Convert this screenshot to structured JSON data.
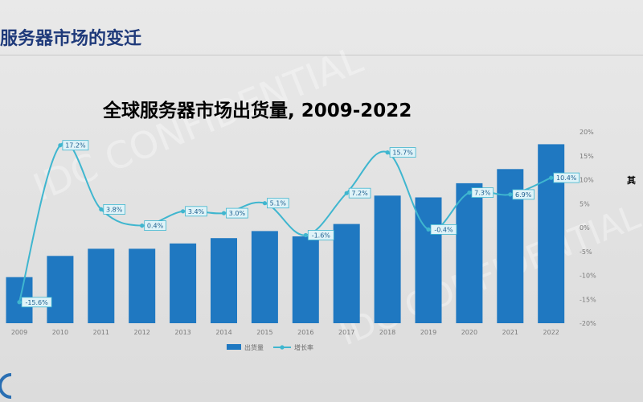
{
  "slide": {
    "title": "服务器市场的变迁",
    "side_note": "其",
    "accent_color": "#1f3a7a"
  },
  "chart_data": {
    "type": "bar",
    "title": "全球服务器市场出货量, 2009-2022",
    "categories": [
      "2009",
      "2010",
      "2011",
      "2012",
      "2013",
      "2014",
      "2015",
      "2016",
      "2017",
      "2018",
      "2019",
      "2020",
      "2021",
      "2022"
    ],
    "series": [
      {
        "name": "出货量",
        "type": "bar",
        "color": "#1f78c1",
        "values": [
          6.6,
          7.8,
          8.2,
          8.2,
          8.5,
          8.8,
          9.2,
          8.9,
          9.6,
          11.2,
          11.1,
          11.9,
          12.7,
          14.1
        ]
      },
      {
        "name": "增长率",
        "type": "line",
        "axis": "right",
        "color": "#3fb6cf",
        "values": [
          -15.6,
          17.2,
          3.8,
          0.4,
          3.4,
          3.0,
          5.1,
          -1.6,
          7.2,
          15.7,
          -0.4,
          7.3,
          6.9,
          10.4
        ],
        "labels": [
          "-15.6%",
          "17.2%",
          "3.8%",
          "0.4%",
          "3.4%",
          "3.0%",
          "5.1%",
          "-1.6%",
          "7.2%",
          "15.7%",
          "-0.4%",
          "7.3%",
          "6.9%",
          "10.4%"
        ]
      }
    ],
    "y_left_range": [
      4,
      14.8
    ],
    "y_right_range": [
      -20,
      20
    ],
    "y_right_ticks": [
      "20%",
      "15%",
      "10%",
      "5%",
      "0%",
      "-5%",
      "-10%",
      "-15%",
      "-20%"
    ],
    "legend_position": "bottom-center",
    "grid": false,
    "watermark": "IDC CONFIDENTIAL"
  }
}
